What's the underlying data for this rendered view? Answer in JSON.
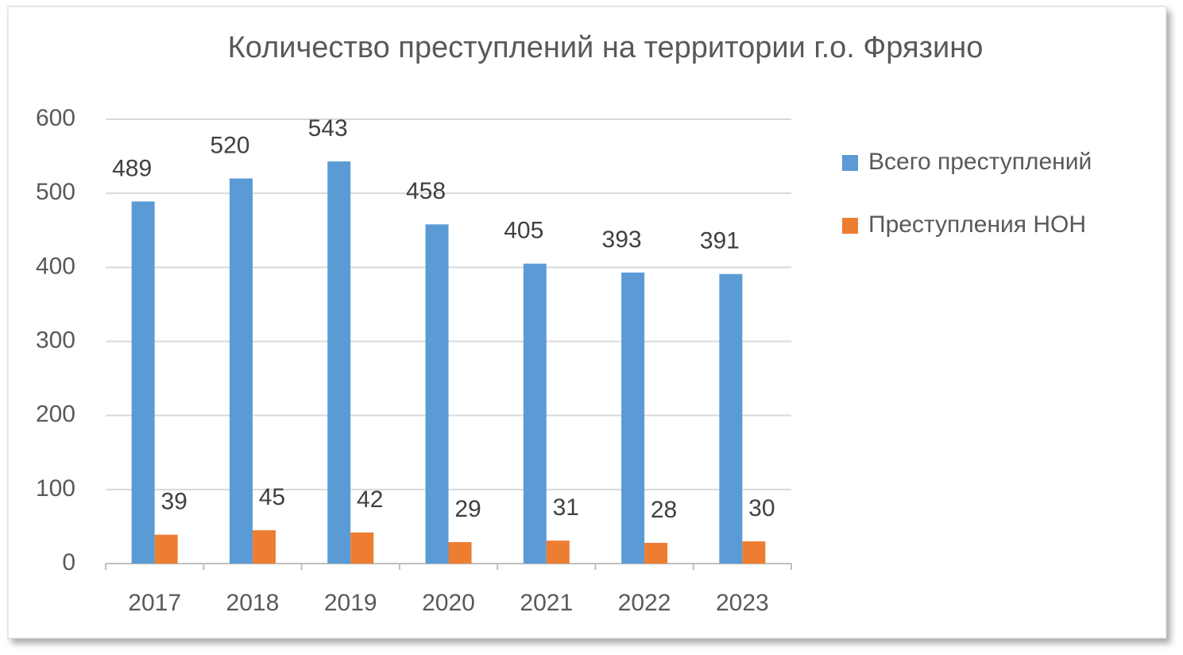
{
  "chart_data": {
    "type": "bar",
    "title": "Количество преступлений на территории г.о. Фрязино",
    "categories": [
      "2017",
      "2018",
      "2019",
      "2020",
      "2021",
      "2022",
      "2023"
    ],
    "series": [
      {
        "name": "Всего преступлений",
        "color": "#5b9bd5",
        "values": [
          489,
          520,
          543,
          458,
          405,
          393,
          391
        ]
      },
      {
        "name": "Преступления НОН",
        "color": "#ed7d31",
        "values": [
          39,
          45,
          42,
          29,
          31,
          28,
          30
        ]
      }
    ],
    "ylim": [
      0,
      600
    ],
    "yticks": [
      0,
      100,
      200,
      300,
      400,
      500,
      600
    ],
    "grid": true,
    "legend": "right"
  }
}
